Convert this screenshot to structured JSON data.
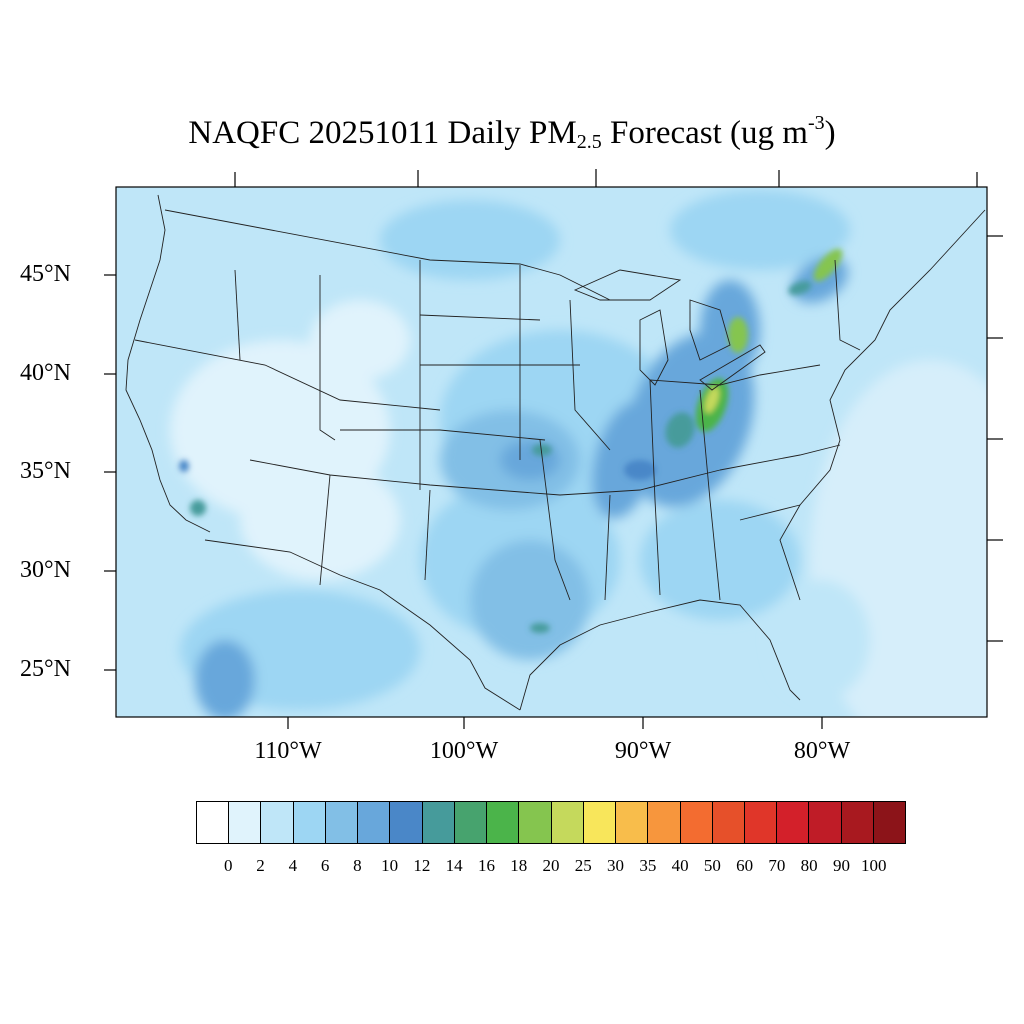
{
  "title": {
    "main": "NAQFC 20251011 Daily PM",
    "sub": "2.5",
    "rest": " Forecast (ug m",
    "sup": "-3",
    "close": ")"
  },
  "lat_labels": [
    "45°N",
    "40°N",
    "35°N",
    "30°N",
    "25°N"
  ],
  "lon_labels": [
    "110°W",
    "100°W",
    "90°W",
    "80°W"
  ],
  "colorbar": {
    "colors": [
      "#ffffff",
      "#e0f3fc",
      "#bfe6f8",
      "#9dd6f3",
      "#82bfe6",
      "#68a7db",
      "#4a87c8",
      "#469b9b",
      "#47a36e",
      "#4bb44a",
      "#85c54f",
      "#c5d95c",
      "#f8e65b",
      "#f8bd4b",
      "#f7963d",
      "#f36c30",
      "#e6502a",
      "#e03629",
      "#d3202a",
      "#bf1c27",
      "#a8191f",
      "#8c1419"
    ],
    "labels": [
      "0",
      "2",
      "4",
      "6",
      "8",
      "10",
      "12",
      "14",
      "16",
      "18",
      "20",
      "25",
      "30",
      "35",
      "40",
      "50",
      "60",
      "70",
      "80",
      "90",
      "100"
    ]
  },
  "map_colors": {
    "ocean_atlantic": "#d6eefa",
    "base": "#bfe6f8",
    "light": "#e0f3fc",
    "mid": "#9dd6f3",
    "midlight": "#82bfe6",
    "dark": "#68a7db",
    "darker": "#4a87c8",
    "teal": "#469b9b",
    "green": "#4bb44a",
    "lime": "#85c54f",
    "yellow": "#c5d95c"
  }
}
